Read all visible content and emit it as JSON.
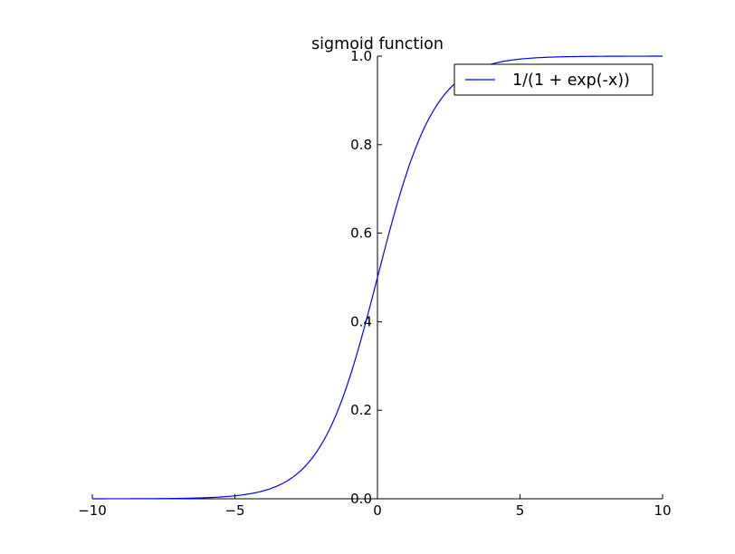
{
  "chart_data": {
    "type": "line",
    "title": "sigmoid function",
    "xlabel": "",
    "ylabel": "",
    "xlim": [
      -10,
      10
    ],
    "ylim": [
      0.0,
      1.0
    ],
    "grid": false,
    "legend_position": "top-right",
    "axes_style": "spines centered at zero (left spine at x = 0, bottom spine at y = 0)",
    "x_ticks": [
      -10,
      -5,
      0,
      5,
      10
    ],
    "x_tick_labels": [
      "−10",
      "−5",
      "0",
      "5",
      "10"
    ],
    "y_ticks": [
      0.0,
      0.2,
      0.4,
      0.6,
      0.8,
      1.0
    ],
    "y_tick_labels": [
      "0.0",
      "0.2",
      "0.4",
      "0.6",
      "0.8",
      "1.0"
    ],
    "series": [
      {
        "name": "1/(1 + exp(-x))",
        "color": "#0000ff",
        "x": [
          -10,
          -9,
          -8,
          -7,
          -6,
          -5,
          -4.5,
          -4,
          -3.5,
          -3,
          -2.5,
          -2,
          -1.5,
          -1,
          -0.5,
          0,
          0.5,
          1,
          1.5,
          2,
          2.5,
          3,
          3.5,
          4,
          4.5,
          5,
          6,
          7,
          8,
          9,
          10
        ],
        "y": [
          0.0,
          0.0001,
          0.0003,
          0.0009,
          0.0025,
          0.0067,
          0.011,
          0.018,
          0.0293,
          0.0474,
          0.0759,
          0.1192,
          0.1824,
          0.2689,
          0.3775,
          0.5,
          0.6225,
          0.7311,
          0.8176,
          0.8808,
          0.9241,
          0.9526,
          0.9707,
          0.982,
          0.989,
          0.9933,
          0.9975,
          0.9991,
          0.9997,
          0.9999,
          1.0
        ]
      }
    ]
  }
}
